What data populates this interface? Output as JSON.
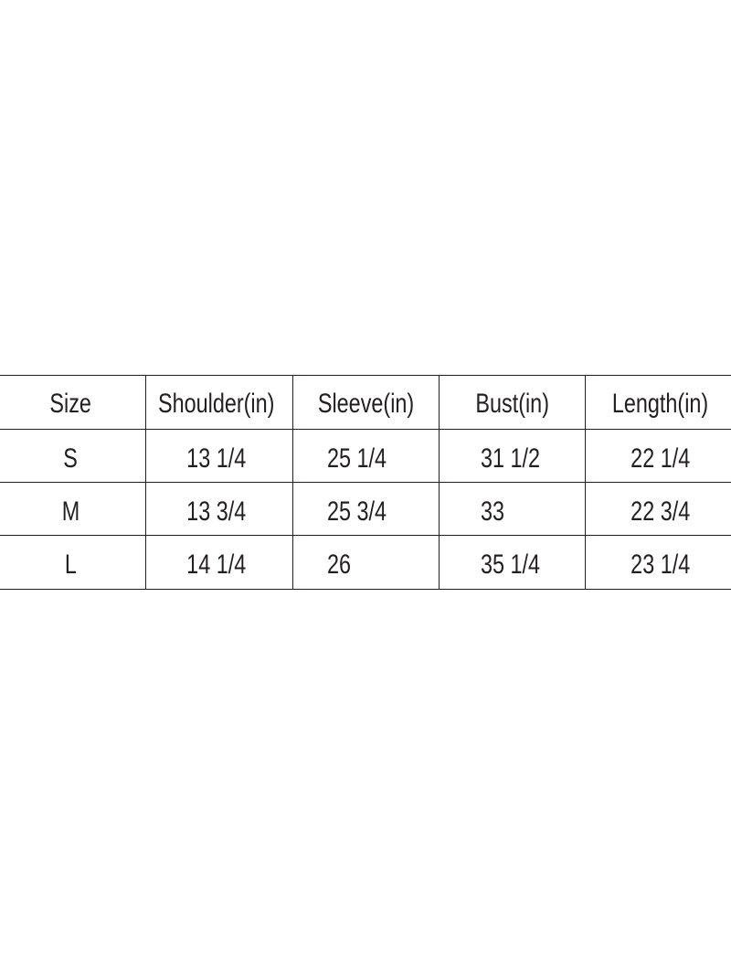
{
  "size_chart": {
    "headers": [
      "Size",
      "Shoulder(in)",
      "Sleeve(in)",
      "Bust(in)",
      "Length(in)"
    ],
    "rows": [
      [
        "S",
        "13 1/4",
        "25 1/4",
        "31 1/2",
        "22 1/4"
      ],
      [
        "M",
        "13 3/4",
        "25 3/4",
        "33",
        "22 3/4"
      ],
      [
        "L",
        "14 1/4",
        "26",
        "35 1/4",
        "23 1/4"
      ]
    ]
  }
}
